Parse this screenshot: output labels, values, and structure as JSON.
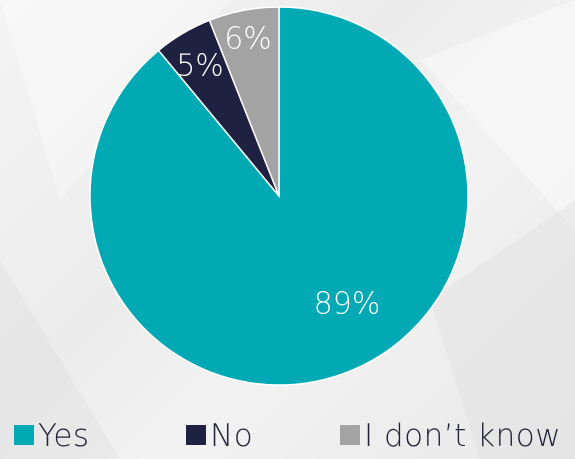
{
  "chart_data": {
    "type": "pie",
    "title": "",
    "slices": [
      {
        "label": "Yes",
        "value": 89,
        "value_label": "89%",
        "color": "#00a9b4"
      },
      {
        "label": "No",
        "value": 5,
        "value_label": "5%",
        "color": "#1f2140"
      },
      {
        "label": "I don’t know",
        "value": 6,
        "value_label": "6%",
        "color": "#a3a3a3"
      }
    ],
    "start_angle": "12 o'clock",
    "direction": "clockwise",
    "legend_position": "bottom",
    "label_color": "#ffffff"
  }
}
